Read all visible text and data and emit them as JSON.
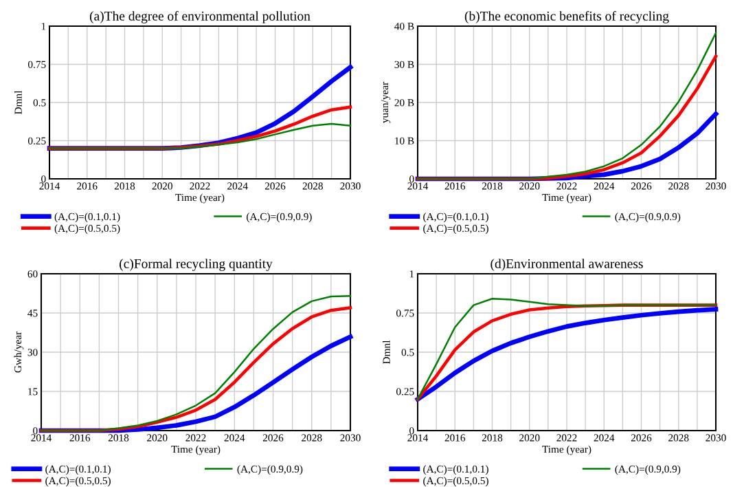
{
  "chart_data": [
    {
      "type": "line",
      "title": "(a)The degree of environmental pollution",
      "xlabel": "Time (year)",
      "ylabel": "Dmnl",
      "grid": true,
      "legend": "bottom",
      "x": [
        2014,
        2015,
        2016,
        2017,
        2018,
        2019,
        2020,
        2021,
        2022,
        2023,
        2024,
        2025,
        2026,
        2027,
        2028,
        2029,
        2030
      ],
      "xlim": [
        2014,
        2030
      ],
      "xticks": [
        2014,
        {
          "value": 2015,
          "label": null
        },
        2016,
        {
          "value": 2017,
          "label": null
        },
        2018,
        {
          "value": 2019,
          "label": null
        },
        2020,
        {
          "value": 2021,
          "label": null
        },
        2022,
        {
          "value": 2023,
          "label": null
        },
        2024,
        {
          "value": 2025,
          "label": null
        },
        2026,
        {
          "value": 2027,
          "label": null
        },
        2028,
        {
          "value": 2029,
          "label": null
        },
        2030
      ],
      "ylim": [
        0,
        1
      ],
      "yticks": [
        0,
        0.25,
        0.5,
        0.75,
        1
      ],
      "series": [
        {
          "name": "(A,C)=(0.1,0.1)",
          "color": "#0000ff",
          "values": [
            0.2,
            0.2,
            0.2,
            0.2,
            0.2,
            0.2,
            0.2,
            0.205,
            0.218,
            0.236,
            0.266,
            0.303,
            0.363,
            0.442,
            0.539,
            0.639,
            0.731
          ]
        },
        {
          "name": "(A,C)=(0.5,0.5)",
          "color": "#ff0000",
          "values": [
            0.2,
            0.2,
            0.2,
            0.2,
            0.2,
            0.2,
            0.2,
            0.205,
            0.215,
            0.228,
            0.251,
            0.278,
            0.313,
            0.358,
            0.41,
            0.452,
            0.47
          ]
        },
        {
          "name": "(A,C)=(0.9,0.9)",
          "color": "#008000",
          "values": [
            0.2,
            0.2,
            0.2,
            0.2,
            0.2,
            0.2,
            0.2,
            0.2,
            0.212,
            0.224,
            0.239,
            0.26,
            0.291,
            0.321,
            0.348,
            0.36,
            0.348
          ]
        }
      ]
    },
    {
      "type": "line",
      "title": "(b)The economic benefits of recycling",
      "xlabel": "Time (year)",
      "ylabel": "yuan/year",
      "grid": true,
      "legend": "bottom",
      "x": [
        2014,
        2015,
        2016,
        2017,
        2018,
        2019,
        2020,
        2021,
        2022,
        2023,
        2024,
        2025,
        2026,
        2027,
        2028,
        2029,
        2030
      ],
      "xlim": [
        2014,
        2030
      ],
      "xticks": [
        2014,
        {
          "value": 2015,
          "label": null
        },
        2016,
        {
          "value": 2017,
          "label": null
        },
        2018,
        {
          "value": 2019,
          "label": null
        },
        2020,
        {
          "value": 2021,
          "label": null
        },
        2022,
        {
          "value": 2023,
          "label": null
        },
        2024,
        {
          "value": 2025,
          "label": null
        },
        2026,
        {
          "value": 2027,
          "label": null
        },
        2028,
        {
          "value": 2029,
          "label": null
        },
        2030
      ],
      "ylim": [
        0,
        40
      ],
      "yticks": [
        0,
        {
          "value": 10,
          "label": "10 B"
        },
        {
          "value": 20,
          "label": "20 B"
        },
        {
          "value": 30,
          "label": "30 B"
        },
        {
          "value": 40,
          "label": "40 B"
        }
      ],
      "series": [
        {
          "name": "(A,C)=(0.1,0.1)",
          "color": "#0000ff",
          "values": [
            0,
            0,
            0,
            0,
            0,
            0,
            0,
            0.1,
            0.2,
            0.7,
            1.1,
            2.0,
            3.3,
            5.2,
            8.2,
            11.9,
            17.0
          ]
        },
        {
          "name": "(A,C)=(0.5,0.5)",
          "color": "#ff0000",
          "values": [
            0,
            0,
            0,
            0,
            0,
            0,
            0,
            0.2,
            0.7,
            1.3,
            2.4,
            4.2,
            6.8,
            11.2,
            16.6,
            23.6,
            32.1
          ]
        },
        {
          "name": "(A,C)=(0.9,0.9)",
          "color": "#008000",
          "values": [
            0,
            0,
            0,
            0,
            0,
            0,
            0,
            0.6,
            1.1,
            1.9,
            3.3,
            5.4,
            8.9,
            13.7,
            20.2,
            28.4,
            38.2
          ]
        }
      ]
    },
    {
      "type": "line",
      "title": "(c)Formal recycling quantity",
      "xlabel": "Time (year)",
      "ylabel": "Gwh/year",
      "grid": true,
      "legend": "bottom",
      "x": [
        2014,
        2015,
        2016,
        2017,
        2018,
        2019,
        2020,
        2021,
        2022,
        2023,
        2024,
        2025,
        2026,
        2027,
        2028,
        2029,
        2030
      ],
      "xlim": [
        2014,
        2030
      ],
      "xticks": [
        2014,
        {
          "value": 2015,
          "label": null
        },
        2016,
        {
          "value": 2017,
          "label": null
        },
        2018,
        {
          "value": 2019,
          "label": null
        },
        2020,
        {
          "value": 2021,
          "label": null
        },
        2022,
        {
          "value": 2023,
          "label": null
        },
        2024,
        {
          "value": 2025,
          "label": null
        },
        2026,
        {
          "value": 2027,
          "label": null
        },
        2028,
        {
          "value": 2029,
          "label": null
        },
        2030
      ],
      "ylim": [
        0,
        60
      ],
      "yticks": [
        0,
        15,
        30,
        45,
        60
      ],
      "series": [
        {
          "name": "(A,C)=(0.1,0.1)",
          "color": "#0000ff",
          "values": [
            0,
            0,
            0,
            0,
            0,
            0.4,
            1.1,
            2.0,
            3.4,
            5.3,
            9.0,
            13.5,
            18.4,
            23.4,
            28.2,
            32.4,
            35.9
          ]
        },
        {
          "name": "(A,C)=(0.5,0.5)",
          "color": "#ff0000",
          "values": [
            0,
            0,
            0,
            0,
            0.6,
            1.5,
            3.2,
            5.1,
            7.8,
            11.9,
            18.5,
            26.1,
            33.2,
            39.0,
            43.5,
            46.0,
            47.0
          ]
        },
        {
          "name": "(A,C)=(0.9,0.9)",
          "color": "#008000",
          "values": [
            0,
            0,
            0,
            0,
            0.9,
            2.0,
            3.7,
            6.2,
            9.6,
            14.3,
            22.4,
            31.3,
            38.9,
            45.3,
            49.5,
            51.3,
            51.5
          ]
        }
      ]
    },
    {
      "type": "line",
      "title": "(d)Environmental awareness",
      "xlabel": "Time (year)",
      "ylabel": "Dmnl",
      "grid": true,
      "legend": "bottom",
      "x": [
        2014,
        2015,
        2016,
        2017,
        2018,
        2019,
        2020,
        2021,
        2022,
        2023,
        2024,
        2025,
        2026,
        2027,
        2028,
        2029,
        2030
      ],
      "xlim": [
        2014,
        2030
      ],
      "xticks": [
        2014,
        {
          "value": 2015,
          "label": null
        },
        2016,
        {
          "value": 2017,
          "label": null
        },
        2018,
        {
          "value": 2019,
          "label": null
        },
        2020,
        {
          "value": 2021,
          "label": null
        },
        2022,
        {
          "value": 2023,
          "label": null
        },
        2024,
        {
          "value": 2025,
          "label": null
        },
        2026,
        {
          "value": 2027,
          "label": null
        },
        2028,
        {
          "value": 2029,
          "label": null
        },
        2030
      ],
      "ylim": [
        0,
        1
      ],
      "yticks": [
        0,
        0.25,
        0.5,
        0.75,
        1
      ],
      "series": [
        {
          "name": "(A,C)=(0.1,0.1)",
          "color": "#0000ff",
          "values": [
            0.2,
            0.28,
            0.368,
            0.444,
            0.508,
            0.558,
            0.598,
            0.633,
            0.664,
            0.686,
            0.705,
            0.721,
            0.736,
            0.748,
            0.758,
            0.767,
            0.774
          ]
        },
        {
          "name": "(A,C)=(0.5,0.5)",
          "color": "#ff0000",
          "values": [
            0.2,
            0.348,
            0.515,
            0.629,
            0.7,
            0.742,
            0.77,
            0.782,
            0.791,
            0.795,
            0.797,
            0.8,
            0.8,
            0.8,
            0.8,
            0.8,
            0.8
          ]
        },
        {
          "name": "(A,C)=(0.9,0.9)",
          "color": "#008000",
          "values": [
            0.2,
            0.424,
            0.659,
            0.8,
            0.841,
            0.836,
            0.821,
            0.806,
            0.8,
            0.795,
            0.795,
            0.8,
            0.8,
            0.8,
            0.8,
            0.8,
            0.8
          ]
        }
      ]
    }
  ]
}
